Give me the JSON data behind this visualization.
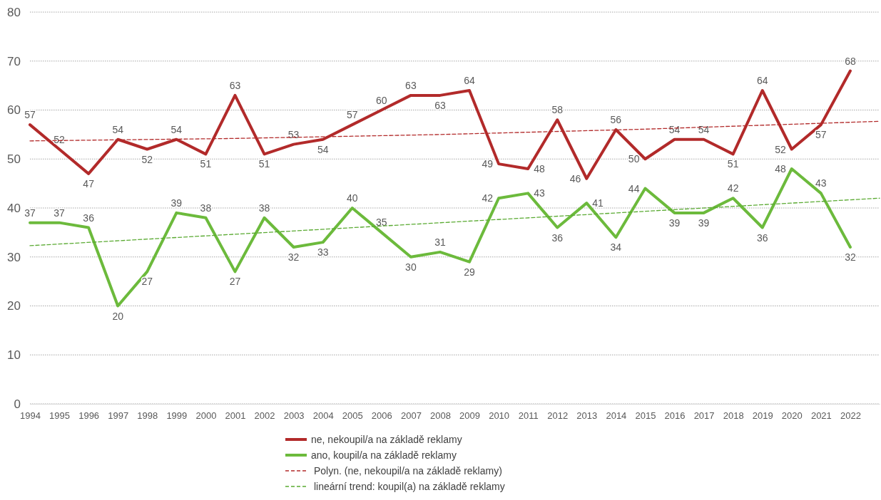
{
  "chart_data": {
    "type": "line",
    "x": [
      1994,
      1995,
      1996,
      1997,
      1998,
      1999,
      2000,
      2001,
      2002,
      2003,
      2004,
      2005,
      2006,
      2007,
      2008,
      2009,
      2010,
      2011,
      2012,
      2013,
      2014,
      2015,
      2016,
      2017,
      2018,
      2019,
      2020,
      2021,
      2022
    ],
    "xlim": [
      1994,
      2023
    ],
    "xticks": [
      1994,
      1995,
      1996,
      1997,
      1998,
      1999,
      2000,
      2001,
      2002,
      2003,
      2004,
      2005,
      2006,
      2007,
      2008,
      2009,
      2010,
      2011,
      2012,
      2013,
      2014,
      2015,
      2016,
      2017,
      2018,
      2019,
      2020,
      2021,
      2022
    ],
    "ylim": [
      0,
      80
    ],
    "yticks": [
      0,
      10,
      20,
      30,
      40,
      50,
      60,
      70,
      80
    ],
    "grid": "y",
    "legend": "bottom",
    "marker": "none",
    "series": [
      {
        "name": "ne, nekoupil/a na základě reklamy",
        "color": "#b22a2a",
        "line_style": "solid",
        "values": [
          57,
          52,
          47,
          54,
          52,
          54,
          51,
          63,
          51,
          53,
          54,
          57,
          60,
          63,
          63,
          64,
          49,
          48,
          58,
          46,
          56,
          50,
          54,
          54,
          51,
          64,
          52,
          57,
          68
        ],
        "value_labels": [
          "57",
          "52",
          "47",
          "54",
          "52",
          "54",
          "51",
          "63",
          "51",
          "53",
          "54",
          "57",
          "60",
          "63",
          "63",
          "64",
          "49",
          "48",
          "58",
          "46",
          "56",
          "50",
          "54",
          "54",
          "51",
          "64",
          "52",
          "57",
          "68"
        ]
      },
      {
        "name": "ano, koupil/a na základě reklamy",
        "color": "#6cba3c",
        "line_style": "solid",
        "values": [
          37,
          37,
          36,
          20,
          27,
          39,
          38,
          27,
          38,
          32,
          33,
          40,
          35,
          30,
          31,
          29,
          42,
          43,
          36,
          41,
          34,
          44,
          39,
          39,
          42,
          36,
          48,
          43,
          32
        ],
        "value_labels": [
          "37",
          "37",
          "36",
          "20",
          "27",
          "39",
          "38",
          "27",
          "38",
          "32",
          "33",
          "40",
          "35",
          "30",
          "31",
          "29",
          "42",
          "43",
          "36",
          "41",
          "34",
          "44",
          "39",
          "39",
          "42",
          "36",
          "48",
          "43",
          "32"
        ]
      },
      {
        "name": "Polyn. (ne, nekoupil/a na základě reklamy)",
        "color": "#b22a2a",
        "type": "line",
        "line_style": "dashed",
        "x": [
          1994,
          2001,
          2008,
          2015,
          2023
        ],
        "values": [
          53.7,
          54.2,
          55,
          56.1,
          57.7
        ]
      },
      {
        "name": "lineární trend: koupil(a) na základě reklamy",
        "color": "#5aaa32",
        "type": "line",
        "line_style": "dashed",
        "x": [
          1994,
          2023
        ],
        "values": [
          32.3,
          42
        ]
      }
    ]
  }
}
